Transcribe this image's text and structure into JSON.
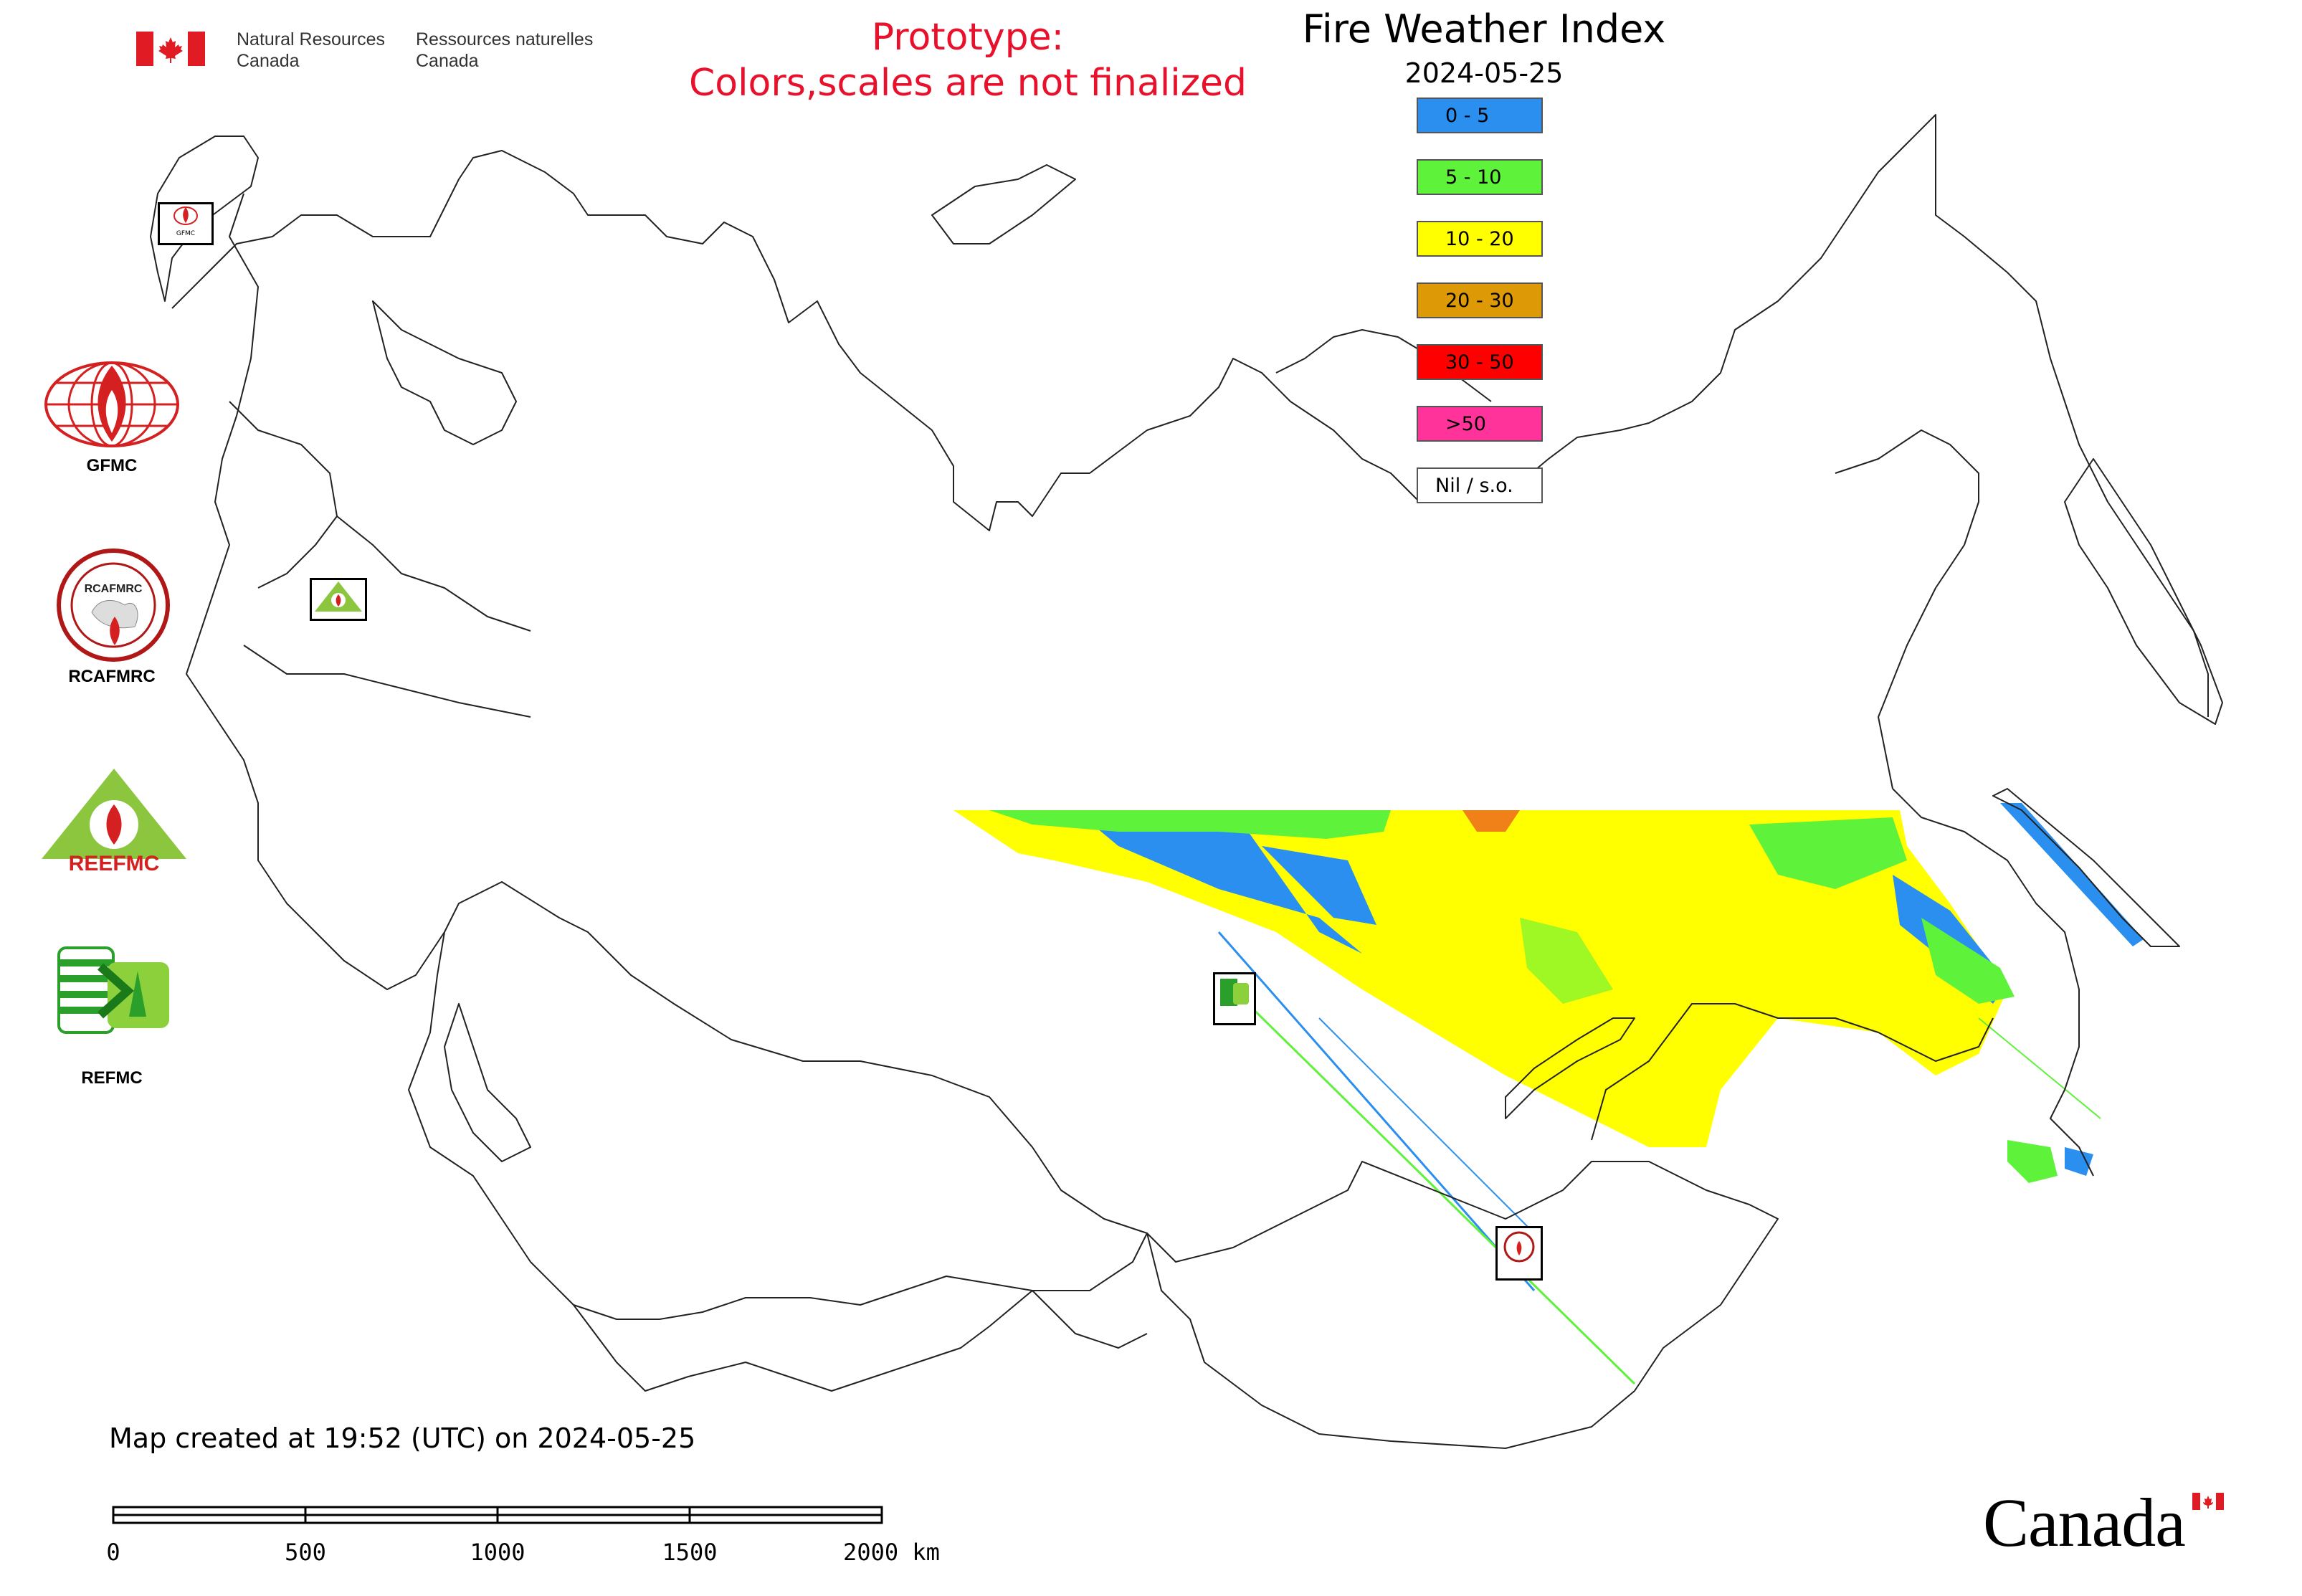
{
  "header": {
    "dept_en_line1": "Natural Resources",
    "dept_en_line2": "Canada",
    "dept_fr_line1": "Ressources naturelles",
    "dept_fr_line2": "Canada",
    "prototype_line1": "Prototype:",
    "prototype_line2": "Colors,scales are not finalized",
    "title": "Fire Weather Index",
    "date": "2024-05-25"
  },
  "legend": {
    "items": [
      {
        "label": "0 - 5",
        "color": "#2b8ff0"
      },
      {
        "label": "5 - 10",
        "color": "#5ff23b"
      },
      {
        "label": "10 - 20",
        "color": "#ffff00"
      },
      {
        "label": "20 - 30",
        "color": "#dd9a06"
      },
      {
        "label": "30 - 50",
        "color": "#ff0000"
      },
      {
        "label": ">50",
        "color": "#ff3399"
      },
      {
        "label": "Nil / s.o.",
        "color": "#ffffff"
      }
    ]
  },
  "partners": {
    "gfmc_small": "GFMC",
    "gfmc": "GFMC",
    "rcafmrc_ring": "RCAFMRC",
    "rcafmrc": "RCAFMRC",
    "reefmc": "REEFMC",
    "refmc": "REFMC"
  },
  "footer": {
    "created": "Map created at 19:52 (UTC) on 2024-05-25",
    "scale": {
      "ticks": [
        "0",
        "500",
        "1000",
        "1500"
      ],
      "last_tick": "2000 km"
    },
    "wordmark": "Canada"
  }
}
